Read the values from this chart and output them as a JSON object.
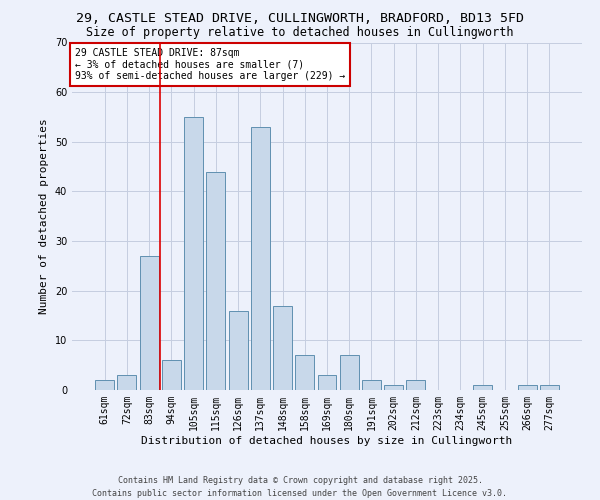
{
  "title_line1": "29, CASTLE STEAD DRIVE, CULLINGWORTH, BRADFORD, BD13 5FD",
  "title_line2": "Size of property relative to detached houses in Cullingworth",
  "xlabel": "Distribution of detached houses by size in Cullingworth",
  "ylabel": "Number of detached properties",
  "categories": [
    "61sqm",
    "72sqm",
    "83sqm",
    "94sqm",
    "105sqm",
    "115sqm",
    "126sqm",
    "137sqm",
    "148sqm",
    "158sqm",
    "169sqm",
    "180sqm",
    "191sqm",
    "202sqm",
    "212sqm",
    "223sqm",
    "234sqm",
    "245sqm",
    "255sqm",
    "266sqm",
    "277sqm"
  ],
  "values": [
    2,
    3,
    27,
    6,
    55,
    44,
    16,
    53,
    17,
    7,
    3,
    7,
    2,
    1,
    2,
    0,
    0,
    1,
    0,
    1,
    1
  ],
  "bar_color": "#c8d8ea",
  "bar_edge_color": "#6090b0",
  "vline_x": 2.5,
  "vline_color": "#dd0000",
  "ylim": [
    0,
    70
  ],
  "yticks": [
    0,
    10,
    20,
    30,
    40,
    50,
    60,
    70
  ],
  "annotation_text": "29 CASTLE STEAD DRIVE: 87sqm\n← 3% of detached houses are smaller (7)\n93% of semi-detached houses are larger (229) →",
  "annotation_box_color": "#ffffff",
  "annotation_box_edge_color": "#cc0000",
  "footer_line1": "Contains HM Land Registry data © Crown copyright and database right 2025.",
  "footer_line2": "Contains public sector information licensed under the Open Government Licence v3.0.",
  "background_color": "#edf1fb",
  "grid_color": "#c5cde0",
  "title_fontsize": 9.5,
  "subtitle_fontsize": 8.5,
  "axis_label_fontsize": 8,
  "tick_fontsize": 7,
  "annotation_fontsize": 7,
  "footer_fontsize": 6
}
